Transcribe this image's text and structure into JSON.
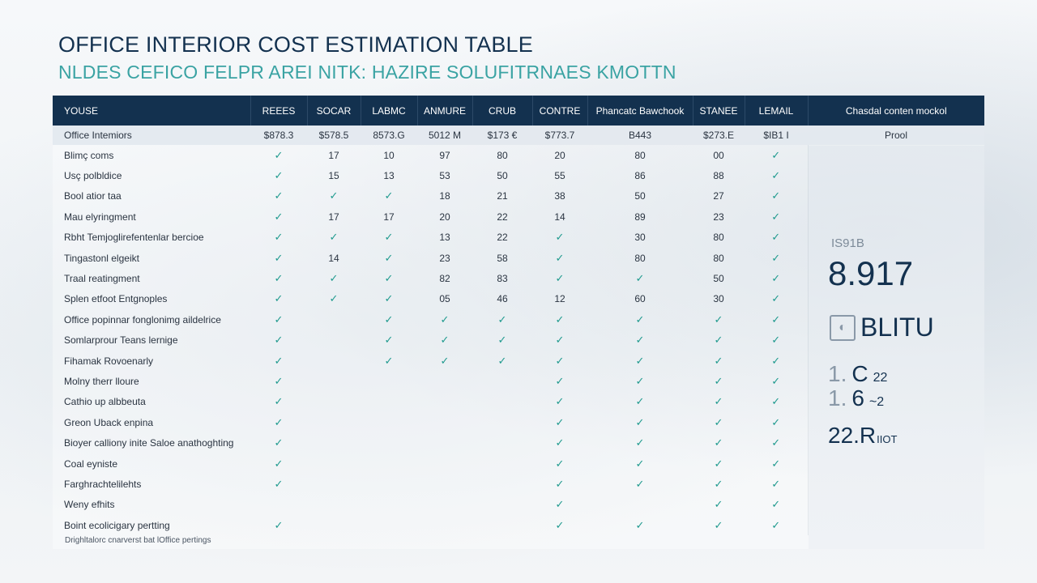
{
  "title": "OFFICE INTERIOR COST ESTIMATION TABLE",
  "subtitle": "NLDES CEFICO FELPR AREI NITK: HAZIRE SOLUFITRNAES KMOTTN",
  "table": {
    "headers": [
      "YOUSE",
      "REEES",
      "SOCAR",
      "LABMC",
      "ANMURE",
      "CRUB",
      "CONTRE",
      "Phancatc Bawchook",
      "STANEE",
      "LEMAIL",
      "Chasdal conten mockol"
    ],
    "rate_row": [
      "Office Intemiors",
      "$878.3",
      "$578.5",
      "8573.G",
      "5012 M",
      "$173 €",
      "$773.7",
      "B443",
      "$273.E",
      "$IB1 I",
      "Prool"
    ],
    "rows": [
      {
        "label": "Blimç coms",
        "cells": [
          "✓",
          "17",
          "10",
          "97",
          "80",
          "20",
          "80",
          "00",
          "✓"
        ]
      },
      {
        "label": "Usç polbldice",
        "cells": [
          "✓",
          "15",
          "13",
          "53",
          "50",
          "55",
          "86",
          "88",
          "✓"
        ]
      },
      {
        "label": "Bool atior taa",
        "cells": [
          "✓",
          "✓",
          "✓",
          "18",
          "21",
          "38",
          "50",
          "27",
          "✓"
        ]
      },
      {
        "label": "Mau elyringment",
        "cells": [
          "✓",
          "17",
          "17",
          "20",
          "22",
          "14",
          "89",
          "23",
          "✓"
        ]
      },
      {
        "label": "Rbht Temjoglirefentenlar bercioe",
        "cells": [
          "✓",
          "✓",
          "✓",
          "13",
          "22",
          "✓",
          "30",
          "80",
          "✓"
        ]
      },
      {
        "label": "Tingastonl elgeikt",
        "cells": [
          "✓",
          "14",
          "✓",
          "23",
          "58",
          "✓",
          "80",
          "80",
          "✓"
        ]
      },
      {
        "label": "Traal reatingment",
        "cells": [
          "✓",
          "✓",
          "✓",
          "82",
          "83",
          "✓",
          "✓",
          "50",
          "✓"
        ]
      },
      {
        "label": "Splen etfoot Entgnoples",
        "cells": [
          "✓",
          "✓",
          "✓",
          "05",
          "46",
          "12",
          "60",
          "30",
          "✓"
        ]
      },
      {
        "label": "Office popinnar fonglonimg aildelrice",
        "cells": [
          "✓",
          "",
          "✓",
          "✓",
          "✓",
          "✓",
          "✓",
          "✓",
          "✓"
        ]
      },
      {
        "label": "Somlarprour Teans lernige",
        "cells": [
          "✓",
          "",
          "✓",
          "✓",
          "✓",
          "✓",
          "✓",
          "✓",
          "✓"
        ]
      },
      {
        "label": "Fihamak Rovoenarly",
        "cells": [
          "✓",
          "",
          "✓",
          "✓",
          "✓",
          "✓",
          "✓",
          "✓",
          "✓"
        ]
      },
      {
        "label": "Molny therr lloure",
        "cells": [
          "✓",
          "",
          "",
          "",
          "",
          "✓",
          "✓",
          "✓",
          "✓"
        ]
      },
      {
        "label": "Cathio up albbeuta",
        "cells": [
          "✓",
          "",
          "",
          "",
          "",
          "✓",
          "✓",
          "✓",
          "✓"
        ]
      },
      {
        "label": "Greon Uback enpina",
        "cells": [
          "✓",
          "",
          "",
          "",
          "",
          "✓",
          "✓",
          "✓",
          "✓"
        ]
      },
      {
        "label": "Bioyer calliony inite Saloe anathoghting",
        "cells": [
          "✓",
          "",
          "",
          "",
          "",
          "✓",
          "✓",
          "✓",
          "✓"
        ]
      },
      {
        "label": "Coal eyniste",
        "cells": [
          "✓",
          "",
          "",
          "",
          "",
          "✓",
          "✓",
          "✓",
          "✓"
        ]
      },
      {
        "label": "Farghrachtelilehts",
        "cells": [
          "✓",
          "",
          "",
          "",
          "",
          "✓",
          "✓",
          "✓",
          "✓"
        ]
      },
      {
        "label": "Weny efhits",
        "cells": [
          "",
          "",
          "",
          "",
          "",
          "✓",
          "",
          "✓",
          "✓"
        ]
      },
      {
        "label": "Boint ecolicigary pertting",
        "cells": [
          "✓",
          "",
          "",
          "",
          "",
          "✓",
          "✓",
          "✓",
          "✓"
        ]
      }
    ]
  },
  "footnote": "Drighltalorc cnarverst bat lOffice pertings",
  "side": {
    "small": "IS91B",
    "big": "8.917",
    "logo_text": "BLITU",
    "line1_dim": "1.",
    "line1_main": "C",
    "line1_sub": "22",
    "line2_dim": "1.",
    "line2_main": "6",
    "line2_sub": "~2",
    "line3_main": "22.R",
    "line3_sub": "IIOT"
  },
  "colors": {
    "header_bg": "#13314f",
    "check": "#1f9a8e",
    "subtitle": "#3aa3a3"
  }
}
